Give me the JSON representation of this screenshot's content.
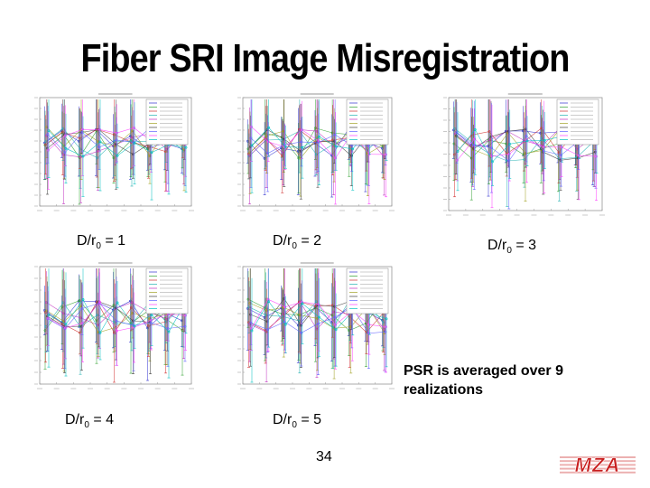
{
  "slide": {
    "title": "Fiber SRI Image Misregistration",
    "note": "PSR is averaged over 9 realizations",
    "page_number": "34",
    "logo_text": "MZA"
  },
  "captions": [
    {
      "prefix": "D/r",
      "sub": "0",
      "suffix": " = 1"
    },
    {
      "prefix": "D/r",
      "sub": "0",
      "suffix": " = 2"
    },
    {
      "prefix": "D/r",
      "sub": "0",
      "suffix": " = 3"
    },
    {
      "prefix": "D/r",
      "sub": "0",
      "suffix": " = 4"
    },
    {
      "prefix": "D/r",
      "sub": "0",
      "suffix": " = 5"
    }
  ],
  "colors": {
    "series": [
      "#3030d0",
      "#30a030",
      "#d03030",
      "#20b0b0",
      "#c030c0",
      "#a0a020",
      "#404040",
      "#6060ff",
      "#ff40ff",
      "#00c0c0"
    ],
    "logo": "#c81e1e"
  }
}
